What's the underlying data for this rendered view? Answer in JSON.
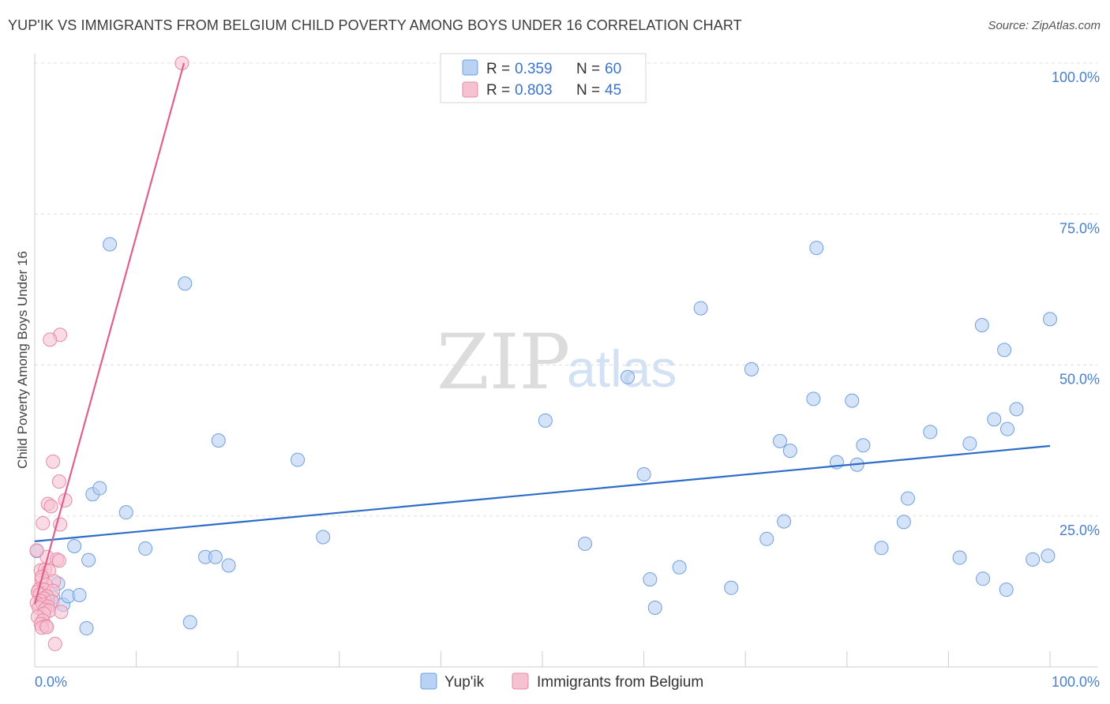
{
  "title": "YUP'IK VS IMMIGRANTS FROM BELGIUM CHILD POVERTY AMONG BOYS UNDER 16 CORRELATION CHART",
  "source": "Source: ZipAtlas.com",
  "watermark": {
    "zip": "ZIP",
    "atlas": "atlas"
  },
  "colors": {
    "blue_fill": "#b9d1f3",
    "blue_stroke": "#6f9fe0",
    "blue_line": "#2d6cc8",
    "pink_fill": "#f6c1d1",
    "pink_stroke": "#e88aa8",
    "pink_line": "#e0608d"
  },
  "legend": {
    "rows": [
      {
        "r_label": "R =",
        "r_value": "0.359",
        "n_label": "N =",
        "n_value": "60"
      },
      {
        "r_label": "R =",
        "r_value": "0.803",
        "n_label": "N =",
        "n_value": "45"
      }
    ]
  },
  "bottom_legend": [
    "Yup'ik",
    "Immigrants from Belgium"
  ],
  "chart_data": {
    "type": "scatter",
    "title": "YUP'IK VS IMMIGRANTS FROM BELGIUM CHILD POVERTY AMONG BOYS UNDER 16 CORRELATION CHART",
    "xlabel": "",
    "ylabel": "Child Poverty Among Boys Under 16",
    "xlim": [
      0,
      100
    ],
    "ylim": [
      0,
      100
    ],
    "x_tick_labels": [
      "0.0%",
      "100.0%"
    ],
    "y_tick_labels": [
      "25.0%",
      "50.0%",
      "75.0%",
      "100.0%"
    ],
    "y_ticks": [
      25,
      50,
      75,
      100
    ],
    "grid": "horizontal dashed",
    "legend_position": "top-center",
    "series": [
      {
        "name": "Yup'ik",
        "r": 0.359,
        "n": 60,
        "trend": {
          "x": [
            0,
            100
          ],
          "y": [
            20.8,
            36.6
          ]
        },
        "points": [
          [
            0.2,
            19.2
          ],
          [
            1.0,
            11.0
          ],
          [
            1.8,
            11.5
          ],
          [
            2.3,
            13.8
          ],
          [
            2.8,
            10.3
          ],
          [
            3.3,
            11.7
          ],
          [
            3.9,
            20.0
          ],
          [
            4.4,
            11.9
          ],
          [
            5.1,
            6.4
          ],
          [
            5.3,
            17.7
          ],
          [
            5.7,
            28.6
          ],
          [
            6.4,
            29.6
          ],
          [
            7.4,
            70.0
          ],
          [
            9.0,
            25.6
          ],
          [
            10.9,
            19.6
          ],
          [
            14.8,
            63.5
          ],
          [
            15.3,
            7.4
          ],
          [
            16.8,
            18.2
          ],
          [
            17.8,
            18.2
          ],
          [
            18.1,
            37.5
          ],
          [
            19.1,
            16.8
          ],
          [
            25.9,
            34.3
          ],
          [
            28.4,
            21.5
          ],
          [
            50.3,
            40.8
          ],
          [
            54.2,
            20.4
          ],
          [
            58.4,
            48.0
          ],
          [
            60.0,
            31.9
          ],
          [
            60.6,
            14.5
          ],
          [
            61.1,
            9.8
          ],
          [
            63.5,
            16.5
          ],
          [
            65.6,
            59.4
          ],
          [
            68.6,
            13.1
          ],
          [
            70.6,
            49.3
          ],
          [
            72.1,
            21.2
          ],
          [
            73.4,
            37.4
          ],
          [
            73.8,
            24.1
          ],
          [
            74.4,
            35.8
          ],
          [
            76.7,
            44.4
          ],
          [
            77.0,
            69.4
          ],
          [
            79.0,
            33.9
          ],
          [
            80.5,
            44.1
          ],
          [
            81.0,
            33.5
          ],
          [
            81.6,
            36.7
          ],
          [
            83.4,
            19.7
          ],
          [
            85.6,
            24.0
          ],
          [
            86.0,
            27.9
          ],
          [
            88.2,
            38.9
          ],
          [
            91.1,
            18.1
          ],
          [
            92.1,
            37.0
          ],
          [
            93.3,
            56.6
          ],
          [
            93.4,
            14.6
          ],
          [
            94.5,
            41.0
          ],
          [
            95.5,
            52.5
          ],
          [
            95.7,
            12.8
          ],
          [
            95.8,
            39.4
          ],
          [
            96.7,
            42.7
          ],
          [
            98.3,
            17.8
          ],
          [
            99.8,
            18.4
          ],
          [
            100.0,
            57.6
          ],
          [
            1.3,
            11.1
          ]
        ]
      },
      {
        "name": "Immigrants from Belgium",
        "r": 0.803,
        "n": 45,
        "trend": {
          "x": [
            0,
            14.7
          ],
          "y": [
            10.4,
            100.0
          ]
        },
        "points": [
          [
            14.5,
            100.0
          ],
          [
            2.5,
            55.0
          ],
          [
            1.5,
            54.2
          ],
          [
            1.8,
            34.0
          ],
          [
            2.4,
            30.7
          ],
          [
            3.0,
            27.6
          ],
          [
            1.3,
            27.0
          ],
          [
            1.6,
            26.6
          ],
          [
            0.8,
            23.8
          ],
          [
            2.5,
            23.6
          ],
          [
            1.2,
            18.2
          ],
          [
            2.2,
            17.8
          ],
          [
            2.4,
            17.6
          ],
          [
            0.6,
            16.0
          ],
          [
            1.0,
            16.1
          ],
          [
            1.4,
            15.9
          ],
          [
            0.7,
            14.4
          ],
          [
            0.7,
            14.9
          ],
          [
            1.9,
            14.2
          ],
          [
            1.1,
            13.6
          ],
          [
            0.4,
            12.8
          ],
          [
            0.9,
            12.8
          ],
          [
            1.8,
            12.6
          ],
          [
            0.3,
            12.4
          ],
          [
            0.5,
            12.0
          ],
          [
            1.2,
            11.7
          ],
          [
            0.9,
            11.3
          ],
          [
            0.6,
            10.9
          ],
          [
            1.7,
            10.8
          ],
          [
            0.2,
            10.6
          ],
          [
            0.8,
            10.3
          ],
          [
            1.3,
            10.0
          ],
          [
            0.4,
            9.8
          ],
          [
            1.0,
            9.5
          ],
          [
            1.4,
            9.3
          ],
          [
            2.6,
            9.1
          ],
          [
            0.9,
            8.8
          ],
          [
            0.3,
            8.3
          ],
          [
            0.8,
            7.7
          ],
          [
            0.6,
            7.1
          ],
          [
            1.1,
            6.8
          ],
          [
            0.7,
            6.5
          ],
          [
            1.2,
            6.6
          ],
          [
            2.0,
            3.8
          ],
          [
            0.2,
            19.3
          ]
        ]
      }
    ]
  }
}
